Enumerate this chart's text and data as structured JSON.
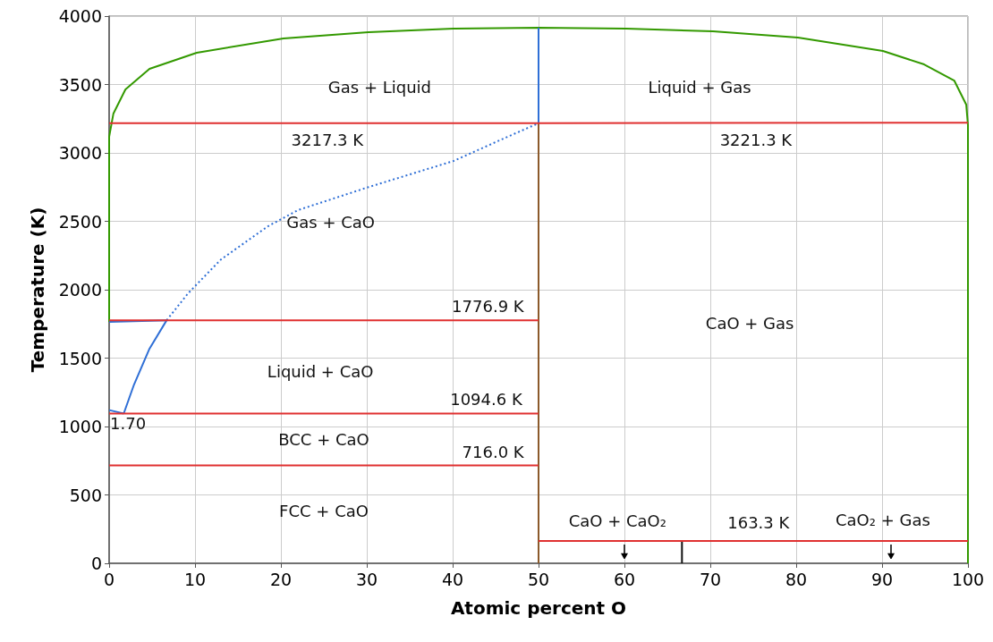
{
  "chart_data": {
    "type": "line",
    "xlabel": "Atomic percent O",
    "ylabel": "Temperature (K)",
    "xlim": [
      0,
      100
    ],
    "xticks": [
      0,
      10,
      20,
      30,
      40,
      50,
      60,
      70,
      80,
      90,
      100
    ],
    "ylim": [
      0,
      4000
    ],
    "yticks": [
      0,
      500,
      1000,
      1500,
      2000,
      2500,
      3000,
      3500,
      4000
    ],
    "grid": true,
    "marker": "none",
    "series": [
      {
        "color": "#339900",
        "x": [
          0,
          0,
          0.5,
          1.9,
          4.7,
          10.2,
          20.3,
          30.2,
          40.1,
          50,
          60.2,
          70.3,
          80.2,
          90.1,
          94.9,
          98.4,
          99.8,
          100,
          100
        ],
        "values": [
          1765,
          3118,
          3288,
          3464,
          3614,
          3732,
          3837,
          3882,
          3908,
          3915,
          3908,
          3889,
          3843,
          3745,
          3647,
          3529,
          3353,
          3203,
          0
        ]
      },
      {
        "color": "#2f6fd6",
        "x": [
          6.7,
          9.2,
          13,
          18.5,
          22,
          30.2,
          40.1,
          46.4,
          50
        ],
        "values": [
          1776.9,
          1974,
          2220,
          2464,
          2582,
          2750,
          2941,
          3118,
          3217.3
        ],
        "line_style": "dotted"
      },
      {
        "color": "#2f6fd6",
        "x": [
          1.7,
          2.9,
          4.7,
          6.7
        ],
        "values": [
          1094.6,
          1307,
          1569,
          1776.9
        ]
      },
      {
        "color": "#2f6fd6",
        "x": [
          0,
          1.7
        ],
        "values": [
          1120,
          1094.6
        ]
      },
      {
        "color": "#2f6fd6",
        "x": [
          0,
          6.7
        ],
        "values": [
          1765,
          1776.9
        ]
      },
      {
        "color": "#2f6fd6",
        "x": [
          50,
          50
        ],
        "values": [
          3217.3,
          3915
        ]
      },
      {
        "color": "#8b5a2b",
        "x": [
          50,
          50
        ],
        "values": [
          0,
          3217.3
        ]
      },
      {
        "color": "#111111",
        "x": [
          66.7,
          66.7
        ],
        "values": [
          0,
          163.3
        ]
      },
      {
        "color": "#e03030",
        "x": [
          0,
          50,
          50,
          100
        ],
        "values": [
          3217.3,
          3217.3,
          3221.3,
          3221.3
        ]
      },
      {
        "color": "#e03030",
        "x": [
          0,
          50
        ],
        "values": [
          1776.9,
          1776.9
        ]
      },
      {
        "color": "#e03030",
        "x": [
          0,
          50
        ],
        "values": [
          1094.6,
          1094.6
        ]
      },
      {
        "color": "#e03030",
        "x": [
          0,
          50
        ],
        "values": [
          716.0,
          716.0
        ]
      },
      {
        "color": "#e03030",
        "x": [
          50,
          100
        ],
        "values": [
          163.3,
          163.3
        ]
      }
    ],
    "annotations": [
      "Gas + Liquid",
      "Liquid + Gas",
      "3217.3 K",
      "3221.3 K",
      "Gas + CaO",
      "1776.9 K",
      "CaO + Gas",
      "Liquid + CaO",
      "1094.6 K",
      "1.70",
      "BCC + CaO",
      "716.0 K",
      "FCC + CaO",
      "CaO + CaO₂",
      "163.3 K",
      "CaO₂ + Gas"
    ]
  }
}
